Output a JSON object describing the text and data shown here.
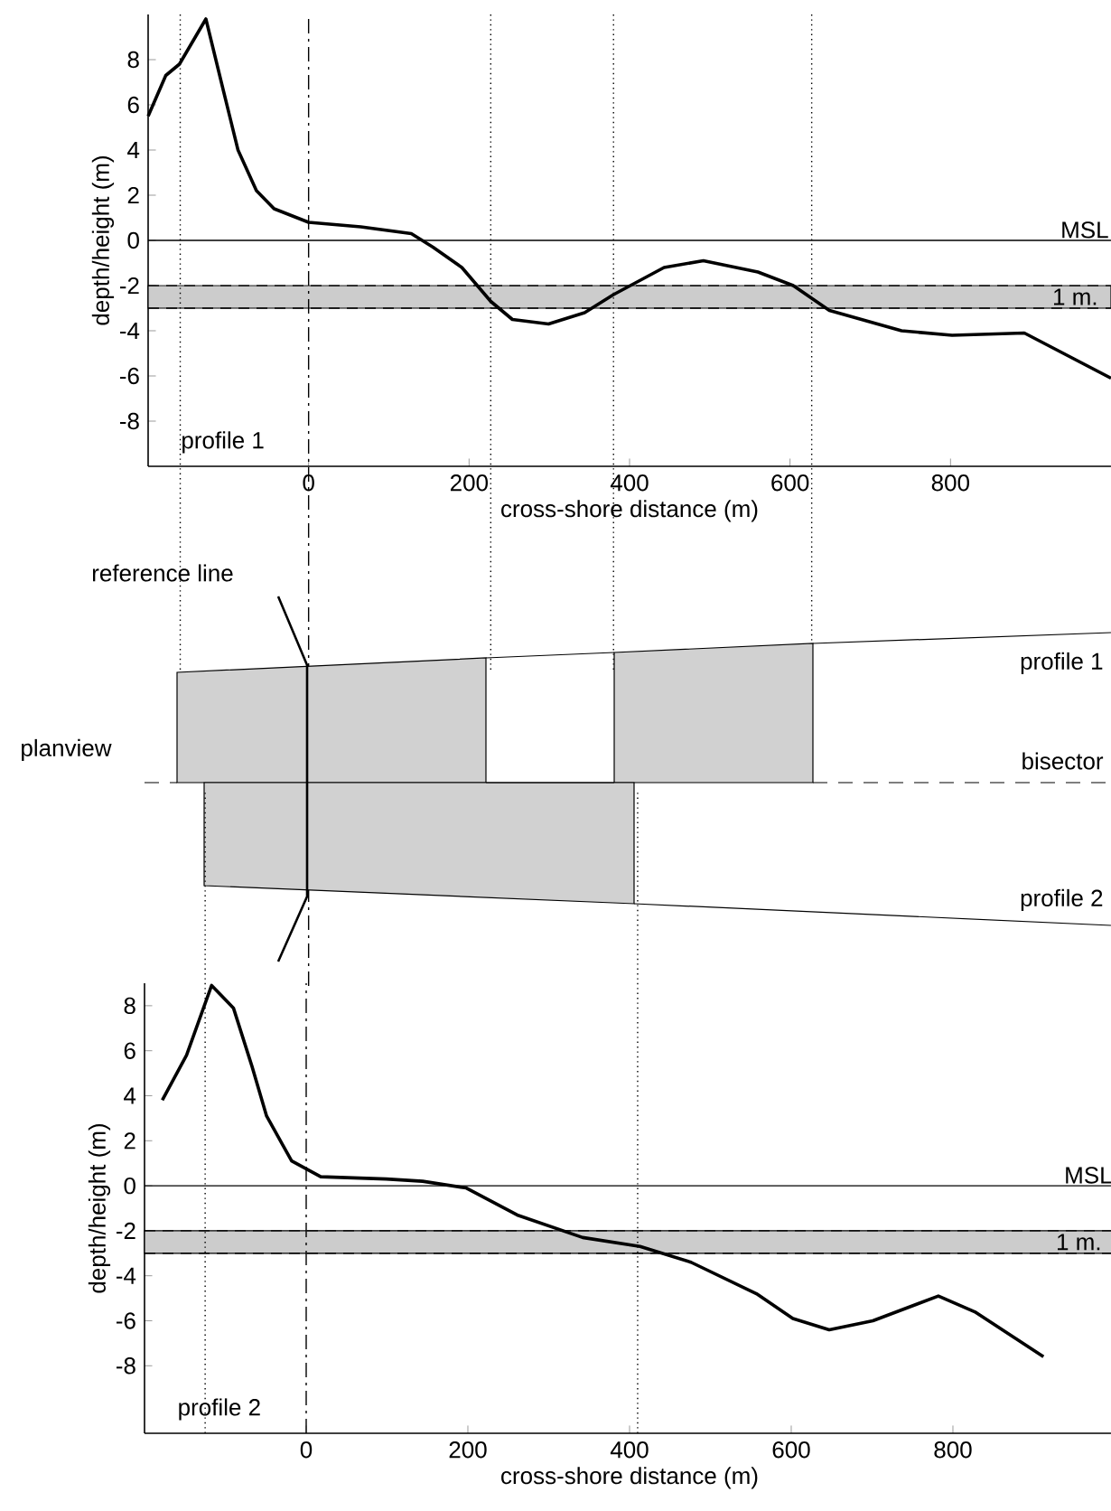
{
  "chart_data": [
    {
      "type": "line",
      "xlabel": "cross-shore distance (m)",
      "ylabel": "depth/height (m)",
      "color": "#000000",
      "x": [
        -200,
        -178,
        -161,
        -128,
        -106,
        -88,
        -65,
        -43,
        0,
        65,
        128,
        155,
        191,
        227,
        254,
        299,
        344,
        380,
        443,
        492,
        560,
        604,
        649,
        739,
        802,
        892,
        1000
      ],
      "values": [
        5.5,
        7.3,
        7.8,
        9.8,
        6.6,
        4.0,
        2.2,
        1.4,
        0.8,
        0.6,
        0.3,
        -0.3,
        -1.2,
        -2.7,
        -3.5,
        -3.7,
        -3.2,
        -2.4,
        -1.2,
        -0.9,
        -1.4,
        -2.0,
        -3.1,
        -4.0,
        -4.2,
        -4.1,
        -6.1
      ],
      "xlim": [
        -200,
        1000
      ],
      "ylim": [
        -10,
        10
      ],
      "xticks": [
        0,
        200,
        400,
        600,
        800
      ],
      "yticks": [
        -8,
        -6,
        -4,
        -2,
        0,
        2,
        4,
        6,
        8
      ],
      "ref_lines": [
        {
          "axis": "y",
          "value": 0,
          "label": "MSL"
        },
        {
          "axis": "y",
          "value": -2,
          "line_style": "dashed"
        },
        {
          "axis": "y",
          "value": -3,
          "line_style": "dashed"
        },
        {
          "axis": "x",
          "value": 0,
          "line_style": "dashdot"
        },
        {
          "axis": "x",
          "value": -160,
          "line_style": "dotted"
        },
        {
          "axis": "x",
          "value": 227,
          "line_style": "dotted"
        },
        {
          "axis": "x",
          "value": 380,
          "line_style": "dotted"
        },
        {
          "axis": "x",
          "value": 627,
          "line_style": "dotted"
        }
      ],
      "bands": [
        {
          "axis": "y",
          "from": -3,
          "to": -2,
          "color": "#cccccc"
        }
      ],
      "annotations": [
        "profile 1",
        "1 m."
      ]
    },
    {
      "type": "other",
      "annotations": [
        "reference line",
        "planview",
        "profile 1",
        "bisector",
        "profile 2"
      ]
    },
    {
      "type": "line",
      "xlabel": "cross-shore distance (m)",
      "ylabel": "depth/height (m)",
      "color": "#000000",
      "x": [
        -178,
        -148,
        -117,
        -90,
        -67,
        -49,
        -18,
        18,
        99,
        144,
        198,
        261,
        342,
        413,
        476,
        557,
        602,
        647,
        701,
        782,
        827,
        912
      ],
      "values": [
        3.8,
        5.8,
        8.9,
        7.9,
        5.3,
        3.1,
        1.1,
        0.4,
        0.3,
        0.2,
        -0.1,
        -1.3,
        -2.3,
        -2.7,
        -3.4,
        -4.8,
        -5.9,
        -6.4,
        -6.0,
        -4.9,
        -5.6,
        -7.6
      ],
      "xlim": [
        -200,
        1000
      ],
      "ylim": [
        -11,
        9
      ],
      "xticks": [
        0,
        200,
        400,
        600,
        800
      ],
      "yticks": [
        -8,
        -6,
        -4,
        -2,
        0,
        2,
        4,
        6,
        8
      ],
      "ref_lines": [
        {
          "axis": "y",
          "value": 0,
          "label": "MSL"
        },
        {
          "axis": "y",
          "value": -2,
          "line_style": "dashed"
        },
        {
          "axis": "y",
          "value": -3,
          "line_style": "dashed"
        },
        {
          "axis": "x",
          "value": 0,
          "line_style": "dashdot"
        },
        {
          "axis": "x",
          "value": -125,
          "line_style": "dotted"
        },
        {
          "axis": "x",
          "value": 410,
          "line_style": "dotted"
        }
      ],
      "bands": [
        {
          "axis": "y",
          "from": -3,
          "to": -2,
          "color": "#cccccc"
        }
      ],
      "annotations": [
        "profile 2",
        "1 m."
      ]
    }
  ]
}
